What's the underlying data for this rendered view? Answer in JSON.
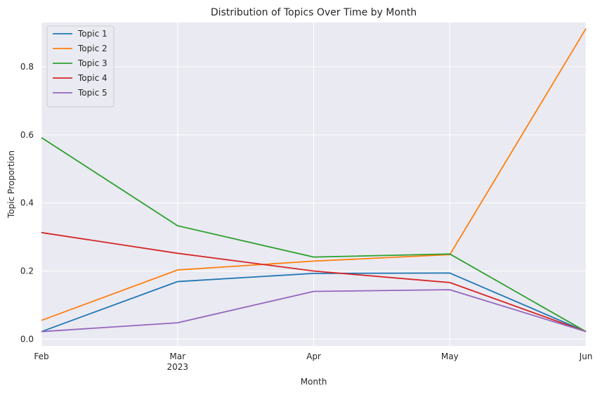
{
  "chart_data": {
    "type": "line",
    "title": "Distribution of Topics Over Time by Month",
    "xlabel": "Month",
    "ylabel": "Topic Proportion",
    "categories": [
      "Feb",
      "Mar",
      "Apr",
      "May",
      "Jun"
    ],
    "year_label": "2023",
    "ylim": [
      -0.02,
      0.93
    ],
    "yticks": [
      0.0,
      0.2,
      0.4,
      0.6,
      0.8
    ],
    "ytick_labels": [
      "0.0",
      "0.2",
      "0.4",
      "0.6",
      "0.8"
    ],
    "grid": true,
    "legend_position": "top-left",
    "background": "#eaeaf2",
    "series": [
      {
        "name": "Topic 1",
        "color": "#1f77b4",
        "values": [
          0.022,
          0.169,
          0.193,
          0.194,
          0.022
        ]
      },
      {
        "name": "Topic 2",
        "color": "#ff7f0e",
        "values": [
          0.055,
          0.203,
          0.229,
          0.248,
          0.912
        ]
      },
      {
        "name": "Topic 3",
        "color": "#2ca02c",
        "values": [
          0.592,
          0.333,
          0.241,
          0.25,
          0.022
        ]
      },
      {
        "name": "Topic 4",
        "color": "#d62728",
        "values": [
          0.313,
          0.252,
          0.2,
          0.166,
          0.022
        ]
      },
      {
        "name": "Topic 5",
        "color": "#9467bd",
        "values": [
          0.022,
          0.048,
          0.14,
          0.145,
          0.022
        ]
      }
    ]
  }
}
